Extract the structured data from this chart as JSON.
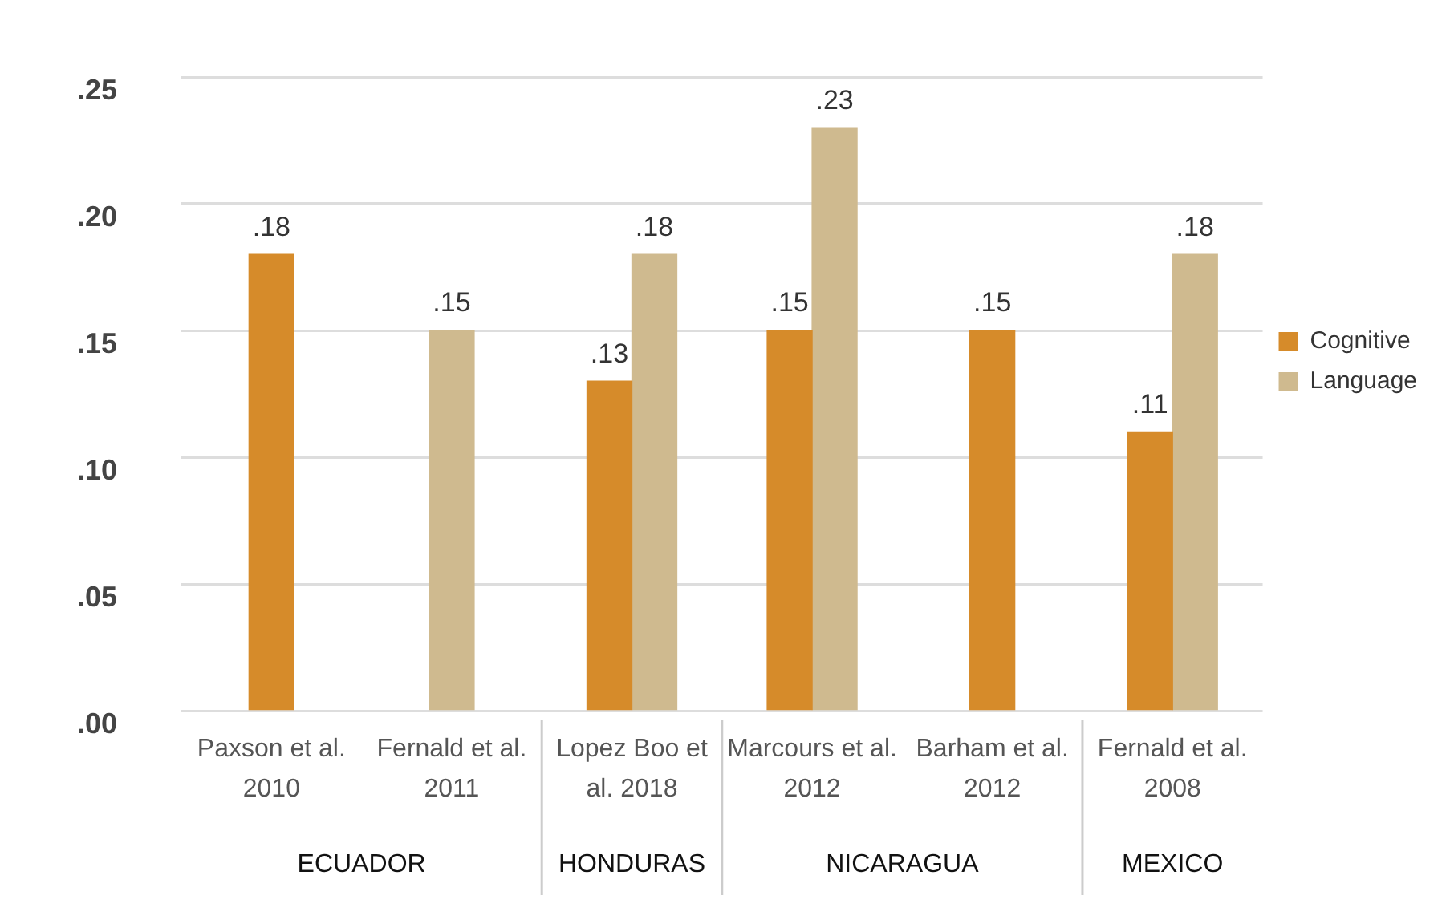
{
  "chart_data": {
    "type": "bar",
    "categories": [
      "Paxson et al. 2010",
      "Fernald et al. 2011",
      "Lopez Boo et al. 2018",
      "Marcours et al. 2012",
      "Barham et al. 2012",
      "Fernald et al. 2008"
    ],
    "series": [
      {
        "name": "Cognitive",
        "color": "#d68b2a",
        "values": [
          0.18,
          null,
          0.13,
          0.15,
          0.15,
          0.11
        ],
        "value_labels": [
          ".18",
          null,
          ".13",
          ".15",
          ".15",
          ".11"
        ]
      },
      {
        "name": "Language",
        "color": "#cfba8f",
        "values": [
          null,
          0.15,
          0.18,
          0.23,
          null,
          0.18
        ],
        "value_labels": [
          null,
          ".15",
          ".18",
          ".23",
          null,
          ".18"
        ]
      }
    ],
    "ylim": [
      0,
      0.25
    ],
    "yticks": [
      {
        "value": 0,
        "label": ".00"
      },
      {
        "value": 0.05,
        "label": ".05"
      },
      {
        "value": 0.1,
        "label": ".10"
      },
      {
        "value": 0.15,
        "label": ".15"
      },
      {
        "value": 0.2,
        "label": ".20"
      },
      {
        "value": 0.25,
        "label": ".25"
      }
    ],
    "grid": "y",
    "legend": "right",
    "annotations": [
      "ECUADOR",
      "HONDURAS",
      "NICARAGUA",
      "MEXICO"
    ]
  }
}
